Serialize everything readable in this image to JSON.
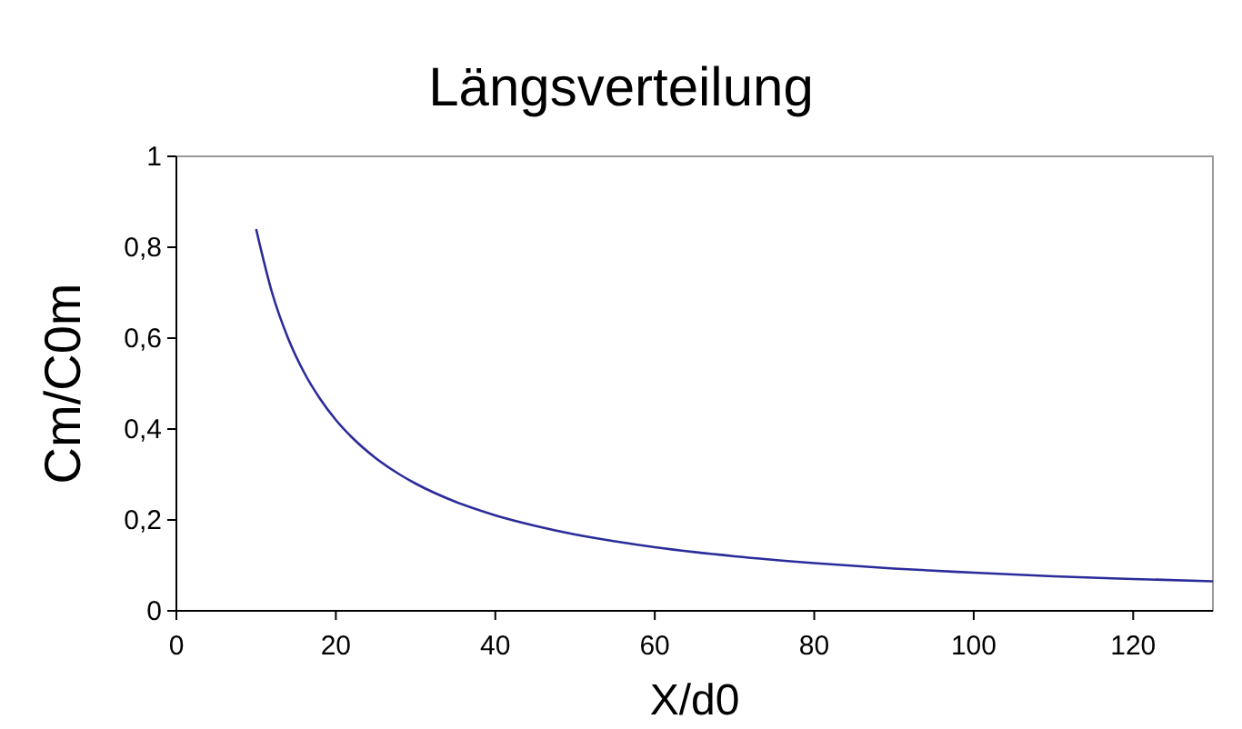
{
  "chart_data": {
    "type": "line",
    "title": "Längsverteilung",
    "xlabel": "X/d0",
    "ylabel": "Cm/C0m",
    "xlim": [
      0,
      130
    ],
    "xticks": [
      0,
      20,
      40,
      60,
      80,
      100,
      120
    ],
    "ylim": [
      0,
      1
    ],
    "yticks": [
      0,
      {
        "value": 0.2,
        "label": "0,2"
      },
      {
        "value": 0.4,
        "label": "0,4"
      },
      {
        "value": 0.6,
        "label": "0,6"
      },
      {
        "value": 0.8,
        "label": "0,8"
      },
      1
    ],
    "grid": false,
    "marker": "none",
    "line_style": "solid",
    "series": [
      {
        "color": "#2b2b9a",
        "x": [
          10,
          12,
          14,
          16,
          18,
          20,
          22,
          25,
          28,
          30,
          35,
          40,
          45,
          50,
          55,
          60,
          70,
          80,
          90,
          100,
          110,
          120,
          130
        ],
        "values": [
          0.84,
          0.7,
          0.6,
          0.525,
          0.467,
          0.42,
          0.382,
          0.336,
          0.3,
          0.28,
          0.24,
          0.21,
          0.187,
          0.168,
          0.153,
          0.14,
          0.12,
          0.105,
          0.093,
          0.084,
          0.076,
          0.07,
          0.065
        ]
      }
    ]
  }
}
